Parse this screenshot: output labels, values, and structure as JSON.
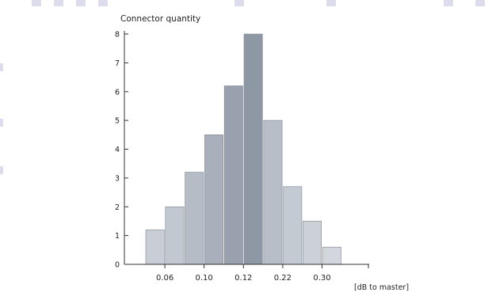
{
  "chart_data": {
    "type": "bar",
    "title": "Connector quantity",
    "xlabel": "[dB to master]",
    "ylabel": "Connector quantity",
    "ylim": [
      0,
      8
    ],
    "yticks": [
      "0",
      "1",
      "2",
      "3",
      "4",
      "5",
      "6",
      "7",
      "8"
    ],
    "xtick_labels": [
      "0.06",
      "0.10",
      "0.12",
      "0.22",
      "0.30"
    ],
    "bins": 11,
    "values": [
      1.2,
      2.0,
      3.2,
      4.5,
      6.2,
      8.0,
      5.0,
      2.7,
      1.5,
      0.6
    ],
    "bar_shades": [
      "#c9ced6",
      "#c2c8d0",
      "#b5bcc6",
      "#a9b0bb",
      "#98a1ad",
      "#8e97a4",
      "#b8bec8",
      "#c4cad2",
      "#ccd1d8",
      "#d3d7dd"
    ],
    "grid": false,
    "legend": "none"
  },
  "colors": {
    "axis": "#333333",
    "bar_stroke": "#ffffff",
    "decoration": "#dcdcec"
  }
}
